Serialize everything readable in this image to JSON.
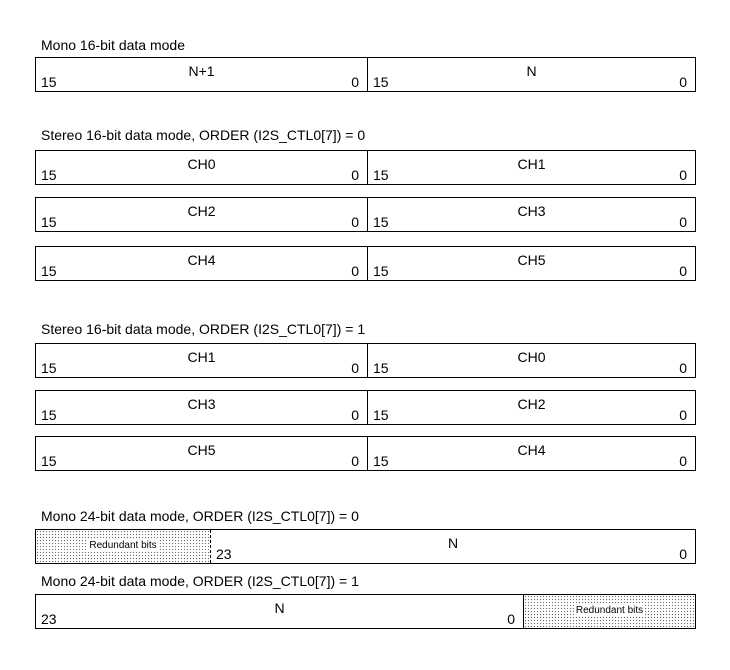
{
  "sections": [
    {
      "title": "Mono 16-bit data mode",
      "rows": [
        [
          {
            "name": "N+1",
            "msb": "15",
            "lsb": "0"
          },
          {
            "name": "N",
            "msb": "15",
            "lsb": "0"
          }
        ]
      ]
    },
    {
      "title": "Stereo 16-bit data mode, ORDER (I2S_CTL0[7]) = 0",
      "rows": [
        [
          {
            "name": "CH0",
            "msb": "15",
            "lsb": "0"
          },
          {
            "name": "CH1",
            "msb": "15",
            "lsb": "0"
          }
        ],
        [
          {
            "name": "CH2",
            "msb": "15",
            "lsb": "0"
          },
          {
            "name": "CH3",
            "msb": "15",
            "lsb": "0"
          }
        ],
        [
          {
            "name": "CH4",
            "msb": "15",
            "lsb": "0"
          },
          {
            "name": "CH5",
            "msb": "15",
            "lsb": "0"
          }
        ]
      ]
    },
    {
      "title": "Stereo 16-bit data mode, ORDER (I2S_CTL0[7]) = 1",
      "rows": [
        [
          {
            "name": "CH1",
            "msb": "15",
            "lsb": "0"
          },
          {
            "name": "CH0",
            "msb": "15",
            "lsb": "0"
          }
        ],
        [
          {
            "name": "CH3",
            "msb": "15",
            "lsb": "0"
          },
          {
            "name": "CH2",
            "msb": "15",
            "lsb": "0"
          }
        ],
        [
          {
            "name": "CH5",
            "msb": "15",
            "lsb": "0"
          },
          {
            "name": "CH4",
            "msb": "15",
            "lsb": "0"
          }
        ]
      ]
    },
    {
      "title": "Mono 24-bit data mode, ORDER (I2S_CTL0[7]) = 0",
      "redundant": "Redundant bits",
      "data": {
        "name": "N",
        "msb": "23",
        "lsb": "0"
      }
    },
    {
      "title": "Mono 24-bit data mode, ORDER (I2S_CTL0[7]) = 1",
      "redundant": "Redundant bits",
      "data": {
        "name": "N",
        "msb": "23",
        "lsb": "0"
      }
    }
  ]
}
